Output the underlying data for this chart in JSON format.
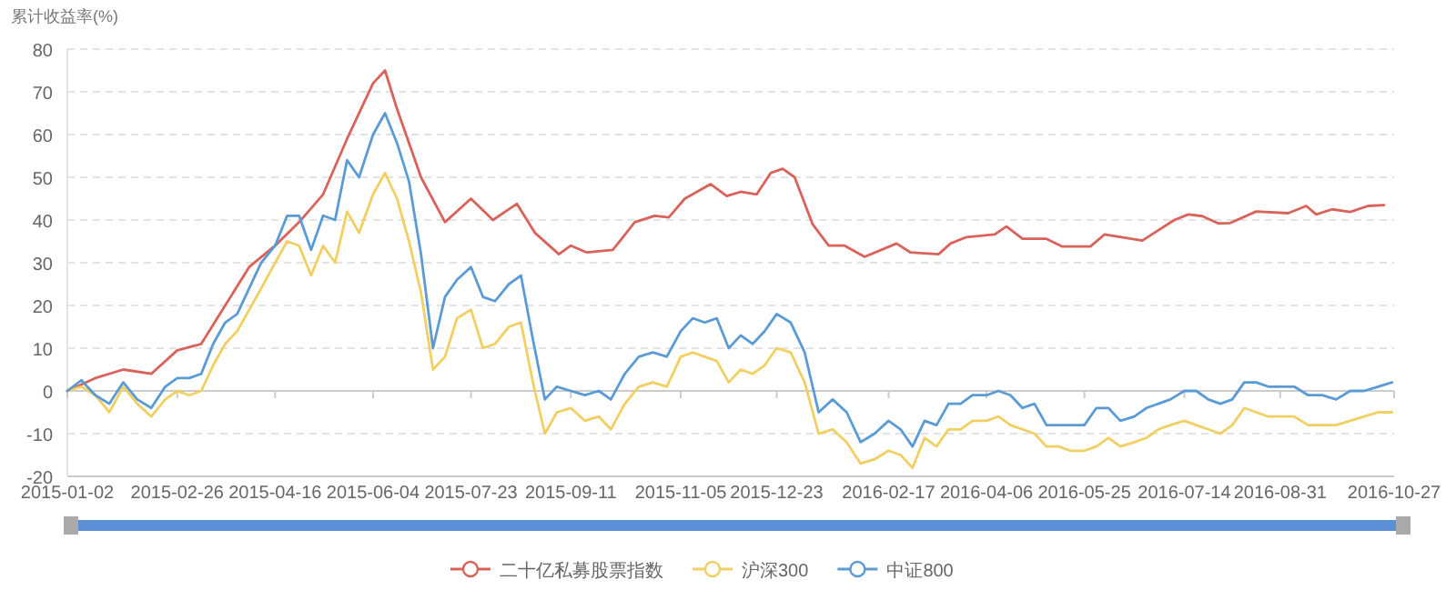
{
  "chart_data": {
    "type": "line",
    "ylabel": "累计收益率(%)",
    "xlim": [
      "2015-01-02",
      "2016-10-27"
    ],
    "xticks": [
      "2015-01-02",
      "2015-02-26",
      "2015-04-16",
      "2015-06-04",
      "2015-07-23",
      "2015-09-11",
      "2015-11-05",
      "2015-12-23",
      "2016-02-17",
      "2016-04-06",
      "2016-05-25",
      "2016-07-14",
      "2016-08-31",
      "2016-10-27"
    ],
    "ylim": [
      -20,
      80
    ],
    "yticks": [
      -20,
      -10,
      0,
      10,
      20,
      30,
      40,
      50,
      60,
      70,
      80
    ],
    "grid": "y",
    "legend": "bottom",
    "series": [
      {
        "name": "二十亿私募股票指数",
        "color": "#d9625a",
        "x": [
          "2015-01-02",
          "2015-01-16",
          "2015-01-30",
          "2015-02-13",
          "2015-02-26",
          "2015-03-10",
          "2015-03-22",
          "2015-04-03",
          "2015-04-16",
          "2015-04-28",
          "2015-05-10",
          "2015-05-22",
          "2015-06-04",
          "2015-06-10",
          "2015-06-16",
          "2015-06-28",
          "2015-07-10",
          "2015-07-23",
          "2015-08-03",
          "2015-08-15",
          "2015-08-24",
          "2015-09-05",
          "2015-09-11",
          "2015-09-19",
          "2015-10-02",
          "2015-10-13",
          "2015-10-23",
          "2015-10-30",
          "2015-11-07",
          "2015-11-20",
          "2015-11-28",
          "2015-12-05",
          "2015-12-13",
          "2015-12-20",
          "2015-12-26",
          "2016-01-01",
          "2016-01-10",
          "2016-01-18",
          "2016-01-26",
          "2016-02-05",
          "2016-02-21",
          "2016-02-28",
          "2016-03-13",
          "2016-03-19",
          "2016-03-27",
          "2016-04-10",
          "2016-04-16",
          "2016-04-24",
          "2016-05-06",
          "2016-05-14",
          "2016-05-28",
          "2016-06-04",
          "2016-06-23",
          "2016-07-09",
          "2016-07-16",
          "2016-07-23",
          "2016-07-31",
          "2016-08-06",
          "2016-08-19",
          "2016-09-04",
          "2016-09-13",
          "2016-09-18",
          "2016-09-26",
          "2016-10-05",
          "2016-10-14",
          "2016-10-22"
        ],
        "values": [
          0,
          3,
          5,
          4,
          9.5,
          11,
          20,
          29,
          34,
          39.5,
          46,
          59,
          72,
          75,
          66,
          50,
          39.5,
          45,
          40,
          43.8,
          37,
          32,
          34,
          32.4,
          33,
          39.5,
          41,
          40.6,
          45,
          48.4,
          45.6,
          46.6,
          46,
          51,
          52,
          50,
          39,
          34,
          34,
          31.4,
          34.5,
          32.4,
          32,
          34.5,
          36,
          36.6,
          38.5,
          35.6,
          35.6,
          33.8,
          33.8,
          36.6,
          35.2,
          40,
          41.3,
          40.9,
          39.2,
          39.3,
          42,
          41.6,
          43.3,
          41.3,
          42.5,
          41.9,
          43.3,
          43.5
        ]
      },
      {
        "name": "沪深300",
        "color": "#f2cf63",
        "x": [
          "2015-01-02",
          "2015-01-09",
          "2015-01-16",
          "2015-01-23",
          "2015-01-30",
          "2015-02-06",
          "2015-02-13",
          "2015-02-20",
          "2015-02-26",
          "2015-03-04",
          "2015-03-10",
          "2015-03-16",
          "2015-03-22",
          "2015-03-28",
          "2015-04-03",
          "2015-04-09",
          "2015-04-16",
          "2015-04-22",
          "2015-04-28",
          "2015-05-04",
          "2015-05-10",
          "2015-05-16",
          "2015-05-22",
          "2015-05-28",
          "2015-06-04",
          "2015-06-10",
          "2015-06-16",
          "2015-06-22",
          "2015-06-28",
          "2015-07-04",
          "2015-07-10",
          "2015-07-16",
          "2015-07-23",
          "2015-07-29",
          "2015-08-04",
          "2015-08-11",
          "2015-08-17",
          "2015-08-23",
          "2015-08-29",
          "2015-09-04",
          "2015-09-11",
          "2015-09-18",
          "2015-09-25",
          "2015-10-01",
          "2015-10-08",
          "2015-10-15",
          "2015-10-22",
          "2015-10-29",
          "2015-11-05",
          "2015-11-11",
          "2015-11-17",
          "2015-11-23",
          "2015-11-29",
          "2015-12-05",
          "2015-12-11",
          "2015-12-17",
          "2015-12-23",
          "2015-12-30",
          "2016-01-06",
          "2016-01-13",
          "2016-01-20",
          "2016-01-27",
          "2016-02-03",
          "2016-02-10",
          "2016-02-17",
          "2016-02-23",
          "2016-02-29",
          "2016-03-06",
          "2016-03-12",
          "2016-03-18",
          "2016-03-24",
          "2016-03-30",
          "2016-04-06",
          "2016-04-12",
          "2016-04-18",
          "2016-04-24",
          "2016-04-30",
          "2016-05-06",
          "2016-05-12",
          "2016-05-18",
          "2016-05-25",
          "2016-05-31",
          "2016-06-06",
          "2016-06-12",
          "2016-06-19",
          "2016-06-25",
          "2016-07-01",
          "2016-07-07",
          "2016-07-14",
          "2016-07-20",
          "2016-07-26",
          "2016-08-01",
          "2016-08-07",
          "2016-08-13",
          "2016-08-19",
          "2016-08-25",
          "2016-08-31",
          "2016-09-07",
          "2016-09-14",
          "2016-09-21",
          "2016-09-28",
          "2016-10-05",
          "2016-10-12",
          "2016-10-19",
          "2016-10-26"
        ],
        "values": [
          0,
          1,
          -1,
          -5,
          1,
          -3,
          -6,
          -2,
          0,
          -1,
          0,
          6,
          11,
          14,
          19,
          24,
          30,
          35,
          34,
          27,
          34,
          30,
          42,
          37,
          46,
          51,
          45,
          35,
          23,
          5,
          8,
          17,
          19,
          10,
          11,
          15,
          16,
          2,
          -10,
          -5,
          -4,
          -7,
          -6,
          -9,
          -3,
          1,
          2,
          1,
          8,
          9,
          8,
          7,
          2,
          5,
          4,
          6,
          10,
          9,
          2,
          -10,
          -9,
          -12,
          -17,
          -16,
          -14,
          -15,
          -18,
          -11,
          -13,
          -9,
          -9,
          -7,
          -7,
          -6,
          -8,
          -9,
          -10,
          -13,
          -13,
          -14,
          -14,
          -13,
          -11,
          -13,
          -12,
          -11,
          -9,
          -8,
          -7,
          -8,
          -9,
          -10,
          -8,
          -4,
          -5,
          -6,
          -6,
          -6,
          -8,
          -8,
          -8,
          -7,
          -6,
          -5,
          -5
        ]
      },
      {
        "name": "中证800",
        "color": "#5b9bd5",
        "x": [
          "2015-01-02",
          "2015-01-09",
          "2015-01-16",
          "2015-01-23",
          "2015-01-30",
          "2015-02-06",
          "2015-02-13",
          "2015-02-20",
          "2015-02-26",
          "2015-03-04",
          "2015-03-10",
          "2015-03-16",
          "2015-03-22",
          "2015-03-28",
          "2015-04-03",
          "2015-04-09",
          "2015-04-16",
          "2015-04-22",
          "2015-04-28",
          "2015-05-04",
          "2015-05-10",
          "2015-05-16",
          "2015-05-22",
          "2015-05-28",
          "2015-06-04",
          "2015-06-10",
          "2015-06-16",
          "2015-06-22",
          "2015-06-28",
          "2015-07-04",
          "2015-07-10",
          "2015-07-16",
          "2015-07-23",
          "2015-07-29",
          "2015-08-04",
          "2015-08-11",
          "2015-08-17",
          "2015-08-23",
          "2015-08-29",
          "2015-09-04",
          "2015-09-11",
          "2015-09-18",
          "2015-09-25",
          "2015-10-01",
          "2015-10-08",
          "2015-10-15",
          "2015-10-22",
          "2015-10-29",
          "2015-11-05",
          "2015-11-11",
          "2015-11-17",
          "2015-11-23",
          "2015-11-29",
          "2015-12-05",
          "2015-12-11",
          "2015-12-17",
          "2015-12-23",
          "2015-12-30",
          "2016-01-06",
          "2016-01-13",
          "2016-01-20",
          "2016-01-27",
          "2016-02-03",
          "2016-02-10",
          "2016-02-17",
          "2016-02-23",
          "2016-02-29",
          "2016-03-06",
          "2016-03-12",
          "2016-03-18",
          "2016-03-24",
          "2016-03-30",
          "2016-04-06",
          "2016-04-12",
          "2016-04-18",
          "2016-04-24",
          "2016-04-30",
          "2016-05-06",
          "2016-05-12",
          "2016-05-18",
          "2016-05-25",
          "2016-05-31",
          "2016-06-06",
          "2016-06-12",
          "2016-06-19",
          "2016-06-25",
          "2016-07-01",
          "2016-07-07",
          "2016-07-14",
          "2016-07-20",
          "2016-07-26",
          "2016-08-01",
          "2016-08-07",
          "2016-08-13",
          "2016-08-19",
          "2016-08-25",
          "2016-08-31",
          "2016-09-07",
          "2016-09-14",
          "2016-09-21",
          "2016-09-28",
          "2016-10-05",
          "2016-10-12",
          "2016-10-19",
          "2016-10-26"
        ],
        "values": [
          0,
          2.5,
          -1,
          -3,
          2,
          -2,
          -4,
          1,
          3,
          3,
          4,
          11,
          16,
          18,
          24,
          30,
          34,
          41,
          41,
          33,
          41,
          40,
          54,
          50,
          60,
          65,
          58,
          49,
          32,
          10,
          22,
          26,
          29,
          22,
          21,
          25,
          27,
          12,
          -2,
          1,
          0,
          -1,
          0,
          -2,
          4,
          8,
          9,
          8,
          14,
          17,
          16,
          17,
          10,
          13,
          11,
          14,
          18,
          16,
          9,
          -5,
          -2,
          -5,
          -12,
          -10,
          -7,
          -9,
          -13,
          -7,
          -8,
          -3,
          -3,
          -1,
          -1,
          0,
          -1,
          -4,
          -3,
          -8,
          -8,
          -8,
          -8,
          -4,
          -4,
          -7,
          -6,
          -4,
          -3,
          -2,
          0,
          0,
          -2,
          -3,
          -2,
          2,
          2,
          1,
          1,
          1,
          -1,
          -1,
          -2,
          0,
          0,
          1,
          2
        ]
      }
    ]
  }
}
